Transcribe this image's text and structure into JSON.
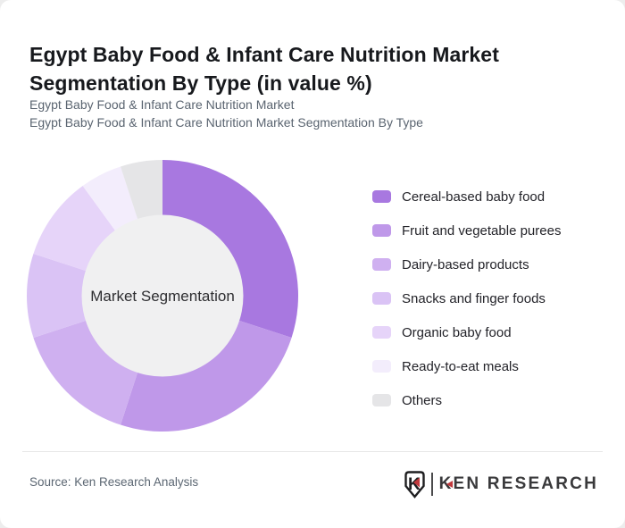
{
  "header": {
    "title": "Egypt Baby Food & Infant Care Nutrition Market Segmentation By Type (in value %)",
    "subtitle_line1": "Egypt Baby Food & Infant Care Nutrition Market",
    "subtitle_line2": "Egypt Baby Food & Infant Care Nutrition Market Segmentation By Type"
  },
  "chart_data": {
    "type": "pie",
    "variant": "donut",
    "title": "Egypt Baby Food & Infant Care Nutrition Market Segmentation By Type (in value %)",
    "unit": "%",
    "center_label": "Market Segmentation",
    "labels": [
      "Cereal-based baby food",
      "Fruit and vegetable purees",
      "Dairy-based products",
      "Snacks and finger foods",
      "Organic baby food",
      "Ready-to-eat meals",
      "Others"
    ],
    "values": [
      30,
      25,
      15,
      10,
      10,
      5,
      5
    ],
    "colors": [
      "#a878e0",
      "#bf98e9",
      "#cfb0f0",
      "#dac3f5",
      "#e6d4f9",
      "#f3edfc",
      "#e5e5e7"
    ],
    "hole_color": "#f0f0f1",
    "start_angle_deg": 0,
    "direction": "clockwise",
    "legend_position": "right",
    "data_labels_shown": false
  },
  "footer": {
    "source": "Source: Ken Research Analysis",
    "logo": {
      "brand": "KEN RESEARCH",
      "monogram": "K",
      "accent_color": "#c0393d",
      "dark_color": "#39393b"
    }
  }
}
